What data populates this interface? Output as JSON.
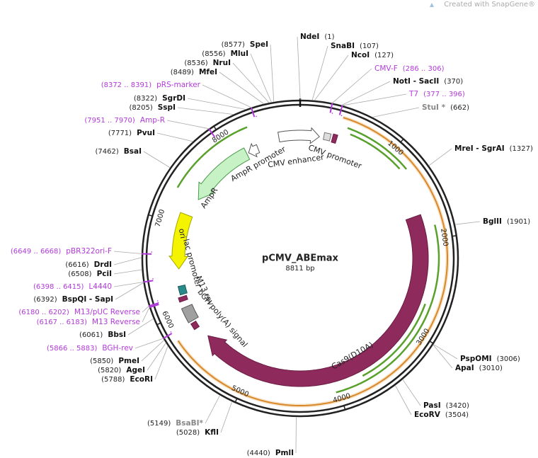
{
  "watermark": "Created with SnapGene®",
  "title": "pCMV_ABEmax",
  "length": {
    "value": 8811,
    "label": "8811 bp"
  },
  "ticks": [
    1000,
    2000,
    3000,
    4000,
    5000,
    6000,
    7000,
    8000
  ],
  "enzymes": [
    {
      "name": "NdeI",
      "pos": {
        "value": 1,
        "label": "(1)"
      }
    },
    {
      "name": "SnaBI",
      "pos": {
        "value": 107,
        "label": "(107)"
      }
    },
    {
      "name": "NcoI",
      "pos": {
        "value": 127,
        "label": "(127)"
      }
    },
    {
      "name": "NotI - SacII",
      "pos": {
        "value": 370,
        "label": "(370)"
      }
    },
    {
      "name": "StuI *",
      "pos": {
        "value": 662,
        "label": "(662)"
      }
    },
    {
      "name": "MreI - SgrAI",
      "pos": {
        "value": 1327,
        "label": "(1327)"
      }
    },
    {
      "name": "BglII",
      "pos": {
        "value": 1901,
        "label": "(1901)"
      }
    },
    {
      "name": "PspOMI",
      "pos": {
        "value": 3006,
        "label": "(3006)"
      }
    },
    {
      "name": "ApaI",
      "pos": {
        "value": 3010,
        "label": "(3010)"
      }
    },
    {
      "name": "PasI",
      "pos": {
        "value": 3420,
        "label": "(3420)"
      }
    },
    {
      "name": "EcoRV",
      "pos": {
        "value": 3504,
        "label": "(3504)"
      }
    },
    {
      "name": "PmlI",
      "pos": {
        "value": 4440,
        "label": "(4440)"
      }
    },
    {
      "name": "KflI",
      "pos": {
        "value": 5028,
        "label": "(5028)"
      }
    },
    {
      "name": "BsaBI*",
      "pos": {
        "value": 5149,
        "label": "(5149)"
      }
    },
    {
      "name": "EcoRI",
      "pos": {
        "value": 5788,
        "label": "(5788)"
      }
    },
    {
      "name": "AgeI",
      "pos": {
        "value": 5820,
        "label": "(5820)"
      }
    },
    {
      "name": "PmeI",
      "pos": {
        "value": 5850,
        "label": "(5850)"
      }
    },
    {
      "name": "BbsI",
      "pos": {
        "value": 6061,
        "label": "(6061)"
      }
    },
    {
      "name": "BspQI - SapI",
      "pos": {
        "value": 6392,
        "label": "(6392)"
      }
    },
    {
      "name": "PciI",
      "pos": {
        "value": 6508,
        "label": "(6508)"
      }
    },
    {
      "name": "DrdI",
      "pos": {
        "value": 6616,
        "label": "(6616)"
      }
    },
    {
      "name": "BsaI",
      "pos": {
        "value": 7462,
        "label": "(7462)"
      }
    },
    {
      "name": "PvuI",
      "pos": {
        "value": 7771,
        "label": "(7771)"
      }
    },
    {
      "name": "SspI",
      "pos": {
        "value": 8205,
        "label": "(8205)"
      }
    },
    {
      "name": "SgrDI",
      "pos": {
        "value": 8322,
        "label": "(8322)"
      }
    },
    {
      "name": "MfeI",
      "pos": {
        "value": 8489,
        "label": "(8489)"
      }
    },
    {
      "name": "NruI",
      "pos": {
        "value": 8536,
        "label": "(8536)"
      }
    },
    {
      "name": "MluI",
      "pos": {
        "value": 8556,
        "label": "(8556)"
      }
    },
    {
      "name": "SpeI",
      "pos": {
        "value": 8577,
        "label": "(8577)"
      }
    }
  ],
  "primers": [
    {
      "name": "CMV-F",
      "range": {
        "start": 286,
        "end": 306,
        "label": "(286 .. 306)"
      }
    },
    {
      "name": "T7",
      "range": {
        "start": 377,
        "end": 396,
        "label": "(377 .. 396)"
      }
    },
    {
      "name": "BGH-rev",
      "range": {
        "start": 5866,
        "end": 5883,
        "label": "(5866 .. 5883)"
      }
    },
    {
      "name": "M13 Reverse",
      "range": {
        "start": 6167,
        "end": 6183,
        "label": "(6167 .. 6183)"
      }
    },
    {
      "name": "M13/pUC Reverse",
      "range": {
        "start": 6180,
        "end": 6202,
        "label": "(6180 .. 6202)"
      }
    },
    {
      "name": "L4440",
      "range": {
        "start": 6398,
        "end": 6415,
        "label": "(6398 .. 6415)"
      }
    },
    {
      "name": "pBR322ori-F",
      "range": {
        "start": 6649,
        "end": 6668,
        "label": "(6649 .. 6668)"
      }
    },
    {
      "name": "Amp-R",
      "range": {
        "start": 7951,
        "end": 7970,
        "label": "(7951 .. 7970)"
      }
    },
    {
      "name": "pRS-marker",
      "range": {
        "start": 8372,
        "end": 8391,
        "label": "(8372 .. 8391)"
      }
    }
  ],
  "features": [
    "AmpR promoter",
    "CMV enhancer",
    "CMV promoter",
    "AmpR",
    "ori",
    "lac promoter",
    "M13 rev",
    "bGH poly(A) signal",
    "Cas9(D10A)"
  ]
}
